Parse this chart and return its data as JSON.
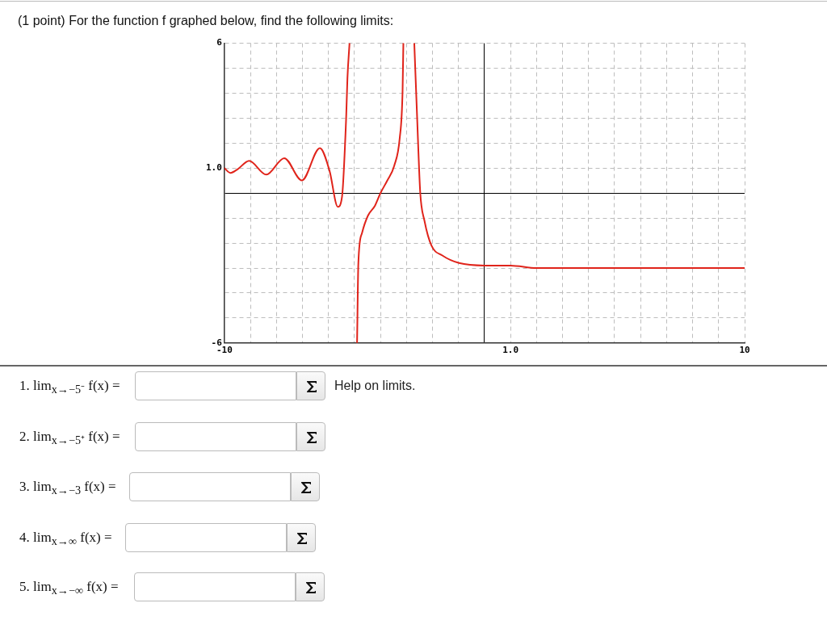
{
  "chart_data": {
    "type": "line",
    "title": "(1 point) For the function f graphed below, find the following limits:",
    "xlim": [
      -10,
      10
    ],
    "ylim": [
      -6,
      6
    ],
    "xticks": [
      -10,
      {
        "value": -9,
        "label": null
      },
      {
        "value": -8,
        "label": null
      },
      {
        "value": -7,
        "label": null
      },
      {
        "value": -6,
        "label": null
      },
      {
        "value": -5,
        "label": null
      },
      {
        "value": -4,
        "label": null
      },
      {
        "value": -3,
        "label": null
      },
      {
        "value": -2,
        "label": null
      },
      {
        "value": -1,
        "label": null
      },
      {
        "value": 0,
        "label": null
      },
      {
        "value": 1,
        "label": "1.0"
      },
      {
        "value": 2,
        "label": null
      },
      {
        "value": 3,
        "label": null
      },
      {
        "value": 4,
        "label": null
      },
      {
        "value": 5,
        "label": null
      },
      {
        "value": 6,
        "label": null
      },
      {
        "value": 7,
        "label": null
      },
      {
        "value": 8,
        "label": null
      },
      {
        "value": 9,
        "label": null
      },
      10
    ],
    "yticks": [
      -6,
      {
        "value": -5,
        "label": null
      },
      {
        "value": -4,
        "label": null
      },
      {
        "value": -3,
        "label": null
      },
      {
        "value": -2,
        "label": null
      },
      {
        "value": -1,
        "label": null
      },
      {
        "value": 0,
        "label": null
      },
      {
        "value": 1,
        "label": "1.0"
      },
      {
        "value": 2,
        "label": null
      },
      {
        "value": 3,
        "label": null
      },
      {
        "value": 4,
        "label": null
      },
      {
        "value": 5,
        "label": null
      },
      6
    ],
    "grid": true,
    "legend": false,
    "marker": "none",
    "line_style": "solid",
    "series": [
      {
        "color": "#e0241b",
        "x": [
          -10,
          -9.77,
          -9.5,
          -9.05,
          -8.39,
          -7.7,
          -7.02,
          -6.33,
          -5.96,
          -5.64,
          -5.48,
          -5.32,
          -5.27,
          -5.19
        ],
        "values": [
          1.0,
          0.81,
          0.95,
          1.29,
          0.74,
          1.4,
          0.51,
          1.8,
          0.9,
          -0.55,
          -0.16,
          3.0,
          4.6,
          6
        ]
      },
      {
        "color": "#e0241b",
        "x": [
          -4.9,
          -4.85,
          -4.71,
          -4.48,
          -4.21,
          -4.0,
          -3.74,
          -3.47,
          -3.26,
          -3.15,
          -3.12
        ],
        "values": [
          -6,
          -2.8,
          -1.6,
          -0.9,
          -0.5,
          0,
          0.5,
          1.1,
          2.2,
          4.1,
          6
        ]
      },
      {
        "color": "#e0241b",
        "x": [
          -2.7,
          -2.59,
          -2.47,
          -2.31,
          -2.04,
          -1.62,
          -0.98,
          0,
          1,
          2,
          10
        ],
        "values": [
          6,
          3.0,
          0,
          -1.1,
          -2.1,
          -2.5,
          -2.8,
          -2.9,
          -2.9,
          -3.0,
          -3.0
        ]
      }
    ],
    "annotations": [
      "1. lim$_{x→−5⁻}$ f(x) =",
      "2. lim$_{x→−5⁺}$ f(x) =",
      "3. lim$_{x→−3}$ f(x) =",
      "4. lim$_{x→∞}$ f(x) =",
      "5. lim$_{x→−∞}$ f(x) =",
      "Help on limits."
    ]
  }
}
